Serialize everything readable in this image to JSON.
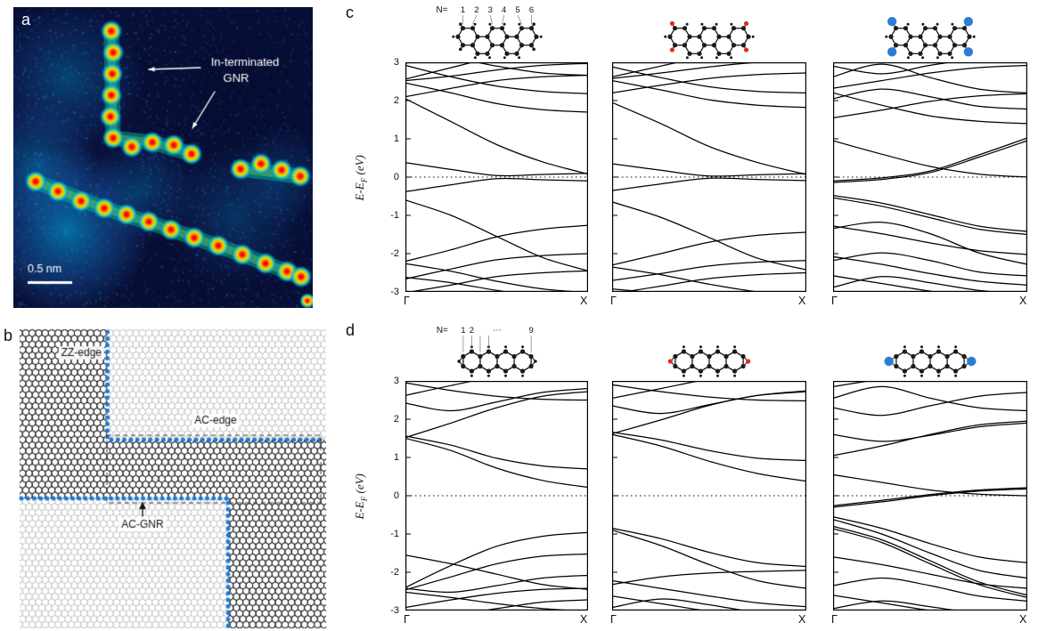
{
  "figure": {
    "background": "#ffffff"
  },
  "axis": {
    "ylabel": "E-E_F (eV)",
    "ylabel_main": "E-E",
    "ylabel_sub": "F",
    "ylabel_rest": " (eV)",
    "xtick_left": "Γ",
    "xtick_right": "X",
    "yticks": [
      3,
      2,
      1,
      0,
      -1,
      -2,
      -3
    ],
    "ylim": [
      -3,
      3
    ]
  },
  "panels": {
    "a": {
      "label": "a",
      "annotation_line1": "In-terminated",
      "annotation_line2": "GNR",
      "scale_bar": "0.5 nm",
      "colors": {
        "bg": "#081038",
        "spot_core": "#c80000",
        "spot_ring": "#ffc800",
        "glow": "#00c8ff"
      },
      "spots": [
        [
          110,
          27
        ],
        [
          112,
          51
        ],
        [
          111,
          75
        ],
        [
          110,
          99
        ],
        [
          109,
          123
        ],
        [
          112,
          147
        ],
        [
          133,
          157
        ],
        [
          156,
          152
        ],
        [
          180,
          155
        ],
        [
          200,
          165
        ],
        [
          255,
          182
        ],
        [
          278,
          176
        ],
        [
          301,
          183
        ],
        [
          322,
          190
        ],
        [
          25,
          196
        ],
        [
          50,
          207
        ],
        [
          76,
          218
        ],
        [
          102,
          226
        ],
        [
          127,
          233
        ],
        [
          152,
          241
        ],
        [
          177,
          250
        ],
        [
          203,
          259
        ],
        [
          230,
          268
        ],
        [
          257,
          278
        ],
        [
          283,
          288
        ],
        [
          307,
          297
        ],
        [
          323,
          303
        ],
        [
          330,
          330
        ]
      ],
      "ridges": [
        [
          [
            110,
            27
          ],
          [
            112,
            147
          ],
          [
            156,
            152
          ],
          [
            200,
            165
          ]
        ],
        [
          [
            25,
            196
          ],
          [
            102,
            226
          ],
          [
            177,
            250
          ],
          [
            257,
            278
          ],
          [
            323,
            303
          ]
        ],
        [
          [
            255,
            182
          ],
          [
            322,
            190
          ]
        ]
      ],
      "blobs": [
        [
          60,
          250,
          95,
          0.55
        ],
        [
          25,
          175,
          70,
          0.35
        ],
        [
          60,
          80,
          85,
          0.3
        ],
        [
          145,
          205,
          60,
          0.25
        ],
        [
          250,
          235,
          80,
          0.22
        ],
        [
          300,
          190,
          55,
          0.2
        ]
      ]
    },
    "b": {
      "label": "b",
      "zz_label": "ZZ-edge",
      "ac_label": "AC-edge",
      "gnr_label": "AC-GNR",
      "dot_color": "#1f7ad6",
      "gray": "#c3c3c3",
      "black": "#1c1c1c"
    },
    "c": {
      "label": "c",
      "n_prefix": "N=",
      "n_values": [
        "1",
        "2",
        "3",
        "4",
        "5",
        "6"
      ],
      "molecules": [
        {
          "mode": "zigzag",
          "rings": 5,
          "term_color": "#1a1a1a",
          "term_r": 1.8,
          "show_n": true
        },
        {
          "mode": "zigzag",
          "rings": 5,
          "term_color": "#e02b1d",
          "term_r": 2.6,
          "show_n": false
        },
        {
          "mode": "zigzag",
          "rings": 5,
          "term_color": "#2e7dd1",
          "term_r": 5.2,
          "show_n": false
        }
      ]
    },
    "d": {
      "label": "d",
      "n_prefix": "N=",
      "n_values": [
        "1",
        "2",
        "⋯",
        "9"
      ],
      "molecules": [
        {
          "mode": "acene",
          "rings": 4,
          "term_color": "#1a1a1a",
          "term_r": 1.8,
          "show_n": true
        },
        {
          "mode": "acene",
          "rings": 4,
          "term_color": "#e02b1d",
          "term_r": 2.6,
          "show_n": false
        },
        {
          "mode": "acene",
          "rings": 4,
          "term_color": "#2e7dd1",
          "term_r": 5.2,
          "show_n": false
        }
      ]
    }
  },
  "chart_data": [
    {
      "id": "c1",
      "type": "line",
      "x": [
        0,
        0.25,
        0.5,
        0.75,
        1
      ],
      "xtick_labels": [
        "Γ",
        "X"
      ],
      "ylim": [
        -3,
        3
      ],
      "yticks": [
        -3,
        -2,
        -1,
        0,
        1,
        2,
        3
      ],
      "ylabel": "E-E_F (eV)",
      "fermi_level": 0,
      "show_ytick_labels": true,
      "bands": [
        [
          0.38,
          0.2,
          0.04,
          0.07,
          0.1
        ],
        [
          -0.38,
          -0.2,
          -0.04,
          -0.07,
          -0.1
        ],
        [
          2.05,
          1.45,
          0.85,
          0.4,
          0.08
        ],
        [
          -0.6,
          -1.0,
          -1.55,
          -2.1,
          -2.45
        ],
        [
          2.1,
          2.32,
          2.52,
          2.62,
          2.66
        ],
        [
          2.46,
          2.2,
          1.92,
          1.76,
          1.7
        ],
        [
          2.52,
          2.64,
          2.8,
          2.92,
          2.97
        ],
        [
          2.56,
          2.86,
          3.15,
          3.35,
          3.45
        ],
        [
          2.92,
          2.62,
          2.38,
          2.24,
          2.18
        ],
        [
          2.98,
          3.1,
          2.9,
          2.72,
          2.66
        ],
        [
          -2.2,
          -1.9,
          -1.56,
          -1.36,
          -1.26
        ],
        [
          -2.26,
          -2.46,
          -2.72,
          -2.92,
          -3.02
        ],
        [
          -2.62,
          -2.76,
          -2.96,
          -3.12,
          -3.22
        ],
        [
          -2.66,
          -2.4,
          -2.16,
          -2.05,
          -2.0
        ],
        [
          -3.02,
          -2.82,
          -2.6,
          -2.5,
          -2.45
        ]
      ]
    },
    {
      "id": "c2",
      "type": "line",
      "x": [
        0,
        0.25,
        0.5,
        0.75,
        1
      ],
      "xtick_labels": [
        "Γ",
        "X"
      ],
      "ylim": [
        -3,
        3
      ],
      "yticks": [
        -3,
        -2,
        -1,
        0,
        1,
        2,
        3
      ],
      "ylabel": "E-E_F (eV)",
      "fermi_level": 0,
      "show_ytick_labels": false,
      "bands": [
        [
          0.35,
          0.18,
          0.03,
          0.06,
          0.09
        ],
        [
          -0.35,
          -0.18,
          -0.03,
          -0.06,
          -0.09
        ],
        [
          1.95,
          1.4,
          0.8,
          0.38,
          0.07
        ],
        [
          -0.65,
          -1.05,
          -1.58,
          -2.12,
          -2.42
        ],
        [
          2.2,
          2.4,
          2.58,
          2.68,
          2.72
        ],
        [
          2.52,
          2.28,
          2.02,
          1.88,
          1.82
        ],
        [
          2.58,
          2.72,
          2.88,
          3.0,
          3.05
        ],
        [
          2.62,
          2.9,
          3.18,
          3.38,
          3.48
        ],
        [
          2.88,
          2.6,
          2.36,
          2.24,
          2.2
        ],
        [
          -2.3,
          -2.0,
          -1.7,
          -1.52,
          -1.44
        ],
        [
          -2.35,
          -2.55,
          -2.8,
          -3.0,
          -3.1
        ],
        [
          -2.7,
          -2.52,
          -2.32,
          -2.22,
          -2.18
        ],
        [
          -2.92,
          -3.05,
          -3.22,
          -3.34,
          -3.4
        ],
        [
          -3.05,
          -2.85,
          -2.65,
          -2.55,
          -2.5
        ]
      ]
    },
    {
      "id": "c3",
      "type": "line",
      "x": [
        0,
        0.25,
        0.5,
        0.75,
        1
      ],
      "xtick_labels": [
        "Γ",
        "X"
      ],
      "ylim": [
        -3,
        3
      ],
      "yticks": [
        -3,
        -2,
        -1,
        0,
        1,
        2,
        3
      ],
      "ylabel": "E-E_F (eV)",
      "fermi_level": 0,
      "show_ytick_labels": false,
      "bands": [
        [
          -0.14,
          -0.06,
          0.12,
          0.52,
          0.95
        ],
        [
          -0.1,
          -0.02,
          0.16,
          0.58,
          1.02
        ],
        [
          0.95,
          0.6,
          0.28,
          0.08,
          0.0
        ],
        [
          2.2,
          1.88,
          1.6,
          1.46,
          1.4
        ],
        [
          1.55,
          1.75,
          1.98,
          2.12,
          2.18
        ],
        [
          2.32,
          2.52,
          2.72,
          2.86,
          2.92
        ],
        [
          2.62,
          2.95,
          2.6,
          2.3,
          2.2
        ],
        [
          2.9,
          2.7,
          2.92,
          3.1,
          3.18
        ],
        [
          2.05,
          2.3,
          2.1,
          1.85,
          1.78
        ],
        [
          -0.48,
          -0.68,
          -0.98,
          -1.28,
          -1.42
        ],
        [
          -0.54,
          -0.76,
          -1.06,
          -1.36,
          -1.5
        ],
        [
          -1.28,
          -1.48,
          -1.72,
          -1.92,
          -2.02
        ],
        [
          -1.34,
          -1.18,
          -1.48,
          -1.98,
          -2.28
        ],
        [
          -2.08,
          -2.28,
          -2.52,
          -2.72,
          -2.82
        ],
        [
          -2.18,
          -1.98,
          -2.18,
          -2.48,
          -2.58
        ],
        [
          -2.58,
          -2.78,
          -2.98,
          -3.14,
          -3.2
        ],
        [
          -2.88,
          -2.6,
          -2.76,
          -2.96,
          -3.06
        ]
      ]
    },
    {
      "id": "d1",
      "type": "line",
      "x": [
        0,
        0.25,
        0.5,
        0.75,
        1
      ],
      "xtick_labels": [
        "Γ",
        "X"
      ],
      "ylim": [
        -3,
        3
      ],
      "yticks": [
        -3,
        -2,
        -1,
        0,
        1,
        2,
        3
      ],
      "ylabel": "E-E_F (eV)",
      "fermi_level": 0,
      "show_ytick_labels": true,
      "bands": [
        [
          1.5,
          1.18,
          0.72,
          0.4,
          0.22
        ],
        [
          1.56,
          1.32,
          0.98,
          0.78,
          0.7
        ],
        [
          1.52,
          1.9,
          2.3,
          2.6,
          2.72
        ],
        [
          2.42,
          2.22,
          2.45,
          2.7,
          2.8
        ],
        [
          2.62,
          2.88,
          3.12,
          3.28,
          3.35
        ],
        [
          2.95,
          2.75,
          2.6,
          2.52,
          2.5
        ],
        [
          -2.4,
          -1.82,
          -1.32,
          -1.06,
          -0.96
        ],
        [
          -2.46,
          -2.12,
          -1.78,
          -1.58,
          -1.52
        ],
        [
          -1.55,
          -1.78,
          -2.05,
          -2.32,
          -2.45
        ],
        [
          -2.42,
          -2.52,
          -2.35,
          -2.15,
          -2.08
        ],
        [
          -2.52,
          -2.66,
          -2.82,
          -2.95,
          -3.02
        ],
        [
          -2.92,
          -2.72,
          -2.55,
          -2.45,
          -2.42
        ],
        [
          -3.02,
          -3.12,
          -2.95,
          -2.78,
          -2.72
        ]
      ]
    },
    {
      "id": "d2",
      "type": "line",
      "x": [
        0,
        0.25,
        0.5,
        0.75,
        1
      ],
      "xtick_labels": [
        "Γ",
        "X"
      ],
      "ylim": [
        -3,
        3
      ],
      "yticks": [
        -3,
        -2,
        -1,
        0,
        1,
        2,
        3
      ],
      "ylabel": "E-E_F (eV)",
      "fermi_level": 0,
      "show_ytick_labels": false,
      "bands": [
        [
          1.6,
          1.3,
          0.9,
          0.58,
          0.38
        ],
        [
          1.66,
          1.46,
          1.18,
          0.98,
          0.92
        ],
        [
          1.62,
          1.98,
          2.36,
          2.62,
          2.74
        ],
        [
          2.35,
          2.15,
          2.38,
          2.62,
          2.72
        ],
        [
          2.55,
          2.8,
          3.05,
          3.22,
          3.3
        ],
        [
          2.9,
          2.72,
          2.58,
          2.5,
          2.48
        ],
        [
          -0.85,
          -1.12,
          -1.48,
          -1.75,
          -1.85
        ],
        [
          -0.9,
          -1.3,
          -1.8,
          -2.22,
          -2.42
        ],
        [
          -2.22,
          -2.42,
          -2.62,
          -2.8,
          -2.9
        ],
        [
          -2.32,
          -2.12,
          -2.02,
          -1.98,
          -1.95
        ],
        [
          -2.62,
          -2.82,
          -3.02,
          -3.18,
          -3.25
        ],
        [
          -2.92,
          -2.7,
          -2.85,
          -3.05,
          -3.12
        ]
      ]
    },
    {
      "id": "d3",
      "type": "line",
      "x": [
        0,
        0.25,
        0.5,
        0.75,
        1
      ],
      "xtick_labels": [
        "Γ",
        "X"
      ],
      "ylim": [
        -3,
        3
      ],
      "yticks": [
        -3,
        -2,
        -1,
        0,
        1,
        2,
        3
      ],
      "ylabel": "E-E_F (eV)",
      "fermi_level": 0,
      "show_ytick_labels": false,
      "bands": [
        [
          -0.3,
          -0.16,
          0.0,
          0.12,
          0.18
        ],
        [
          -0.26,
          -0.12,
          0.03,
          0.15,
          0.21
        ],
        [
          0.55,
          0.35,
          0.15,
          0.04,
          0.0
        ],
        [
          1.05,
          1.3,
          1.6,
          1.85,
          1.95
        ],
        [
          2.3,
          2.1,
          2.35,
          2.6,
          2.7
        ],
        [
          2.55,
          2.85,
          2.55,
          2.3,
          2.22
        ],
        [
          2.85,
          3.05,
          3.2,
          3.3,
          3.35
        ],
        [
          1.6,
          1.42,
          1.58,
          1.8,
          1.9
        ],
        [
          -0.55,
          -0.85,
          -1.25,
          -1.6,
          -1.75
        ],
        [
          -0.62,
          -1.0,
          -1.5,
          -1.95,
          -2.15
        ],
        [
          -0.8,
          -1.15,
          -1.7,
          -2.25,
          -2.6
        ],
        [
          -0.86,
          -1.22,
          -1.78,
          -2.32,
          -2.66
        ],
        [
          -1.6,
          -1.8,
          -2.05,
          -2.3,
          -2.42
        ],
        [
          -2.35,
          -2.15,
          -2.35,
          -2.62,
          -2.75
        ],
        [
          -2.6,
          -2.8,
          -3.0,
          -3.15,
          -3.22
        ],
        [
          -2.95,
          -2.75,
          -2.9,
          -3.08,
          -3.16
        ]
      ]
    }
  ]
}
